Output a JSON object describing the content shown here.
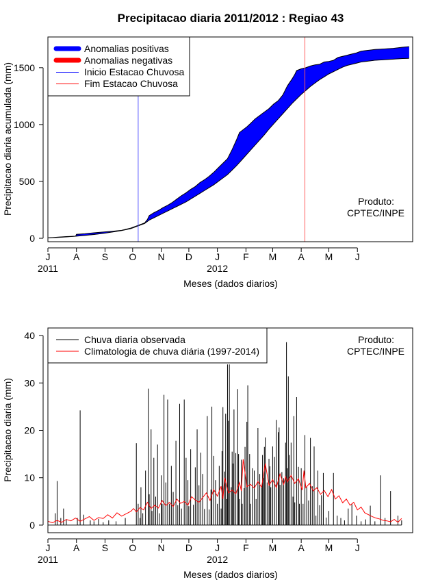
{
  "chart_data": [
    {
      "type": "area",
      "title": "Precipitacao diaria 2011/2012 : Regiao 43",
      "xlabel": "Meses (dados diarios)",
      "ylabel": "Precipitacao diaria acumulada (mm)",
      "ylim": [
        -30,
        1770
      ],
      "yticks": [
        0,
        500,
        1000,
        1500
      ],
      "xdays": [
        0,
        396
      ],
      "month_ticks": [
        {
          "label": "J",
          "day": 0
        },
        {
          "label": "A",
          "day": 31
        },
        {
          "label": "S",
          "day": 62
        },
        {
          "label": "O",
          "day": 92
        },
        {
          "label": "N",
          "day": 123
        },
        {
          "label": "D",
          "day": 153
        },
        {
          "label": "J",
          "day": 184
        },
        {
          "label": "F",
          "day": 215
        },
        {
          "label": "M",
          "day": 244
        },
        {
          "label": "A",
          "day": 275
        },
        {
          "label": "M",
          "day": 305
        },
        {
          "label": "J",
          "day": 336
        }
      ],
      "year_labels": [
        {
          "label": "2011",
          "day": 0
        },
        {
          "label": "2012",
          "day": 184
        }
      ],
      "legend": {
        "placement": "top-left",
        "entries": [
          {
            "label": "Anomalias positivas",
            "color": "#0000ff",
            "style": "thick"
          },
          {
            "label": "Anomalias negativas",
            "color": "#ff0000",
            "style": "thick"
          },
          {
            "label": "Inicio Estacao Chuvosa",
            "color": "#0000ff",
            "style": "thin"
          },
          {
            "label": "Fim Estacao Chuvosa",
            "color": "#ff0000",
            "style": "thin"
          }
        ]
      },
      "vlines": [
        {
          "name": "inicio",
          "day": 98,
          "color": "#5a5aff"
        },
        {
          "name": "fim",
          "day": 279,
          "color": "#ff5a5a"
        }
      ],
      "series": [
        {
          "name": "Observado acumulado",
          "days": [
            0,
            10,
            20,
            30,
            31,
            40,
            50,
            60,
            70,
            80,
            90,
            95,
            100,
            105,
            108,
            110,
            115,
            120,
            125,
            130,
            135,
            140,
            145,
            150,
            155,
            160,
            165,
            170,
            175,
            180,
            185,
            190,
            195,
            200,
            205,
            208,
            212,
            216,
            220,
            225,
            230,
            235,
            240,
            245,
            250,
            255,
            260,
            265,
            268,
            270,
            275,
            280,
            285,
            290,
            295,
            300,
            305,
            310,
            315,
            320,
            325,
            330,
            335,
            340,
            345,
            350,
            355,
            365,
            375,
            385,
            392
          ],
          "values": [
            3,
            10,
            15,
            18,
            35,
            40,
            48,
            55,
            62,
            70,
            90,
            105,
            120,
            135,
            165,
            200,
            225,
            245,
            270,
            290,
            315,
            345,
            375,
            400,
            430,
            455,
            490,
            515,
            545,
            580,
            620,
            660,
            700,
            780,
            870,
            930,
            955,
            980,
            1010,
            1050,
            1080,
            1110,
            1140,
            1180,
            1210,
            1260,
            1340,
            1400,
            1440,
            1475,
            1490,
            1500,
            1515,
            1525,
            1530,
            1550,
            1555,
            1565,
            1590,
            1600,
            1610,
            1620,
            1630,
            1645,
            1650,
            1655,
            1660,
            1665,
            1670,
            1680,
            1685
          ]
        },
        {
          "name": "Climatologia acumulada",
          "days": [
            0,
            10,
            20,
            30,
            40,
            50,
            60,
            70,
            80,
            90,
            95,
            100,
            105,
            110,
            115,
            120,
            125,
            130,
            135,
            140,
            145,
            150,
            155,
            160,
            165,
            170,
            175,
            180,
            185,
            190,
            195,
            200,
            205,
            210,
            215,
            220,
            225,
            230,
            235,
            240,
            245,
            250,
            255,
            260,
            265,
            270,
            275,
            280,
            285,
            290,
            295,
            300,
            305,
            310,
            315,
            320,
            325,
            330,
            335,
            340,
            345,
            350,
            355,
            365,
            375,
            385,
            392
          ],
          "values": [
            3,
            7,
            12,
            18,
            25,
            33,
            43,
            55,
            68,
            85,
            100,
            115,
            130,
            160,
            180,
            200,
            220,
            240,
            260,
            280,
            300,
            320,
            345,
            370,
            395,
            420,
            445,
            470,
            500,
            530,
            560,
            600,
            640,
            685,
            730,
            775,
            820,
            865,
            910,
            960,
            1005,
            1050,
            1095,
            1140,
            1185,
            1225,
            1265,
            1300,
            1335,
            1365,
            1395,
            1420,
            1445,
            1465,
            1485,
            1505,
            1520,
            1530,
            1540,
            1550,
            1555,
            1560,
            1565,
            1570,
            1575,
            1580,
            1582
          ]
        }
      ],
      "annotation": [
        "Produto:",
        "CPTEC/INPE"
      ]
    },
    {
      "type": "bar",
      "title": "",
      "xlabel": "Meses (dados diarios)",
      "ylabel": "Precipitacao diaria (mm)",
      "ylim": [
        -1.6,
        41.6
      ],
      "yticks": [
        0,
        10,
        20,
        30,
        40
      ],
      "xdays": [
        0,
        396
      ],
      "month_ticks": [
        {
          "label": "J",
          "day": 0
        },
        {
          "label": "A",
          "day": 31
        },
        {
          "label": "S",
          "day": 62
        },
        {
          "label": "O",
          "day": 92
        },
        {
          "label": "N",
          "day": 123
        },
        {
          "label": "D",
          "day": 153
        },
        {
          "label": "J",
          "day": 184
        },
        {
          "label": "F",
          "day": 215
        },
        {
          "label": "M",
          "day": 244
        },
        {
          "label": "A",
          "day": 275
        },
        {
          "label": "M",
          "day": 305
        },
        {
          "label": "J",
          "day": 336
        }
      ],
      "year_labels": [
        {
          "label": "2011",
          "day": 0
        },
        {
          "label": "2012",
          "day": 184
        }
      ],
      "legend": {
        "placement": "top-left",
        "entries": [
          {
            "label": "Chuva diaria observada",
            "color": "#000000",
            "style": "thin"
          },
          {
            "label": "Climatologia de chuva diária (1997-2014)",
            "color": "#ff0000",
            "style": "thin"
          }
        ]
      },
      "series": [
        {
          "name": "Chuva diaria observada",
          "type": "bar",
          "days": [
            8,
            10,
            14,
            17,
            20,
            32,
            35,
            39,
            46,
            50,
            55,
            60,
            66,
            74,
            84,
            96,
            98,
            100,
            101,
            103,
            106,
            109,
            110,
            112,
            113,
            115,
            117,
            119,
            121,
            123,
            124,
            126,
            128,
            130,
            132,
            134,
            136,
            139,
            141,
            143,
            145,
            148,
            150,
            152,
            153,
            155,
            158,
            160,
            162,
            164,
            166,
            168,
            170,
            173,
            175,
            177,
            178,
            180,
            182,
            184,
            186,
            188,
            189,
            190,
            192,
            193,
            194,
            195,
            196,
            197,
            199,
            200,
            201,
            202,
            204,
            206,
            207,
            208,
            210,
            211,
            213,
            214,
            216,
            217,
            219,
            220,
            222,
            224,
            226,
            228,
            230,
            232,
            233,
            234,
            235,
            236,
            238,
            240,
            241,
            242,
            244,
            246,
            248,
            250,
            251,
            252,
            254,
            256,
            258,
            259,
            260,
            261,
            262,
            264,
            266,
            267,
            268,
            270,
            272,
            273,
            275,
            277,
            279,
            281,
            283,
            285,
            287,
            289,
            291,
            293,
            295,
            297,
            299,
            302,
            305,
            310,
            314,
            318,
            322,
            326,
            330,
            335,
            340,
            345,
            350,
            355,
            361,
            366,
            372,
            380,
            384
          ],
          "values": [
            2.5,
            9.3,
            1.5,
            3.5,
            1.2,
            1.5,
            24.2,
            2.2,
            1.0,
            0.8,
            1.3,
            0.6,
            1.0,
            0.8,
            1.5,
            17.3,
            4.5,
            1.5,
            8.0,
            2.5,
            11.5,
            28.8,
            6.5,
            20.2,
            3.0,
            14.2,
            6.0,
            17.0,
            2.5,
            10.5,
            4.5,
            27.5,
            9.0,
            26.5,
            4.5,
            12.5,
            7.0,
            17.8,
            4.2,
            25.6,
            3.5,
            26.5,
            14.2,
            9.5,
            4.0,
            16.0,
            4.3,
            12.2,
            20.2,
            8.4,
            15.3,
            10.8,
            3.4,
            23.0,
            3.3,
            7.5,
            25.0,
            14.6,
            9.5,
            4.5,
            12.5,
            3.5,
            15.6,
            24.9,
            11.3,
            23.5,
            5.5,
            33.9,
            22.0,
            33.9,
            8.0,
            15.5,
            13.0,
            24.4,
            15.2,
            28.7,
            15.0,
            5.5,
            13.8,
            4.5,
            7.8,
            16.5,
            21.8,
            29.5,
            15.0,
            4.5,
            12.0,
            11.5,
            5.5,
            20.5,
            10.8,
            8.0,
            14.8,
            10.0,
            16.5,
            18.5,
            9.0,
            14.0,
            12.4,
            8.0,
            16.6,
            14.4,
            22.2,
            19.6,
            20.6,
            8.5,
            11.2,
            9.9,
            17.4,
            38.6,
            12.0,
            31.4,
            14.8,
            17.4,
            6.0,
            23.0,
            4.8,
            27.0,
            12.3,
            4.5,
            12.0,
            4.5,
            19.0,
            8.0,
            5.2,
            18.4,
            8.2,
            16.6,
            2.0,
            11.5,
            4.2,
            6.3,
            11.0,
            1.6,
            3.0,
            11.0,
            2.0,
            1.5,
            1.0,
            3.5,
            4.4,
            2.0,
            0.8,
            1.2,
            4.1,
            0.8,
            10.5,
            1.5,
            7.2,
            2.0,
            1.0
          ],
          "color": "#000000"
        },
        {
          "name": "Climatologia de chuva diária (1997-2014)",
          "type": "line",
          "days": [
            0,
            5,
            10,
            15,
            20,
            25,
            30,
            35,
            40,
            45,
            50,
            55,
            60,
            65,
            70,
            75,
            80,
            85,
            90,
            93,
            96,
            100,
            104,
            108,
            112,
            116,
            120,
            124,
            128,
            132,
            136,
            140,
            144,
            148,
            152,
            156,
            160,
            164,
            168,
            172,
            176,
            180,
            184,
            188,
            190,
            192,
            196,
            200,
            204,
            208,
            210,
            212,
            216,
            220,
            224,
            228,
            232,
            236,
            240,
            244,
            248,
            252,
            256,
            258,
            260,
            264,
            268,
            272,
            276,
            278,
            280,
            284,
            288,
            292,
            296,
            300,
            304,
            308,
            312,
            316,
            320,
            324,
            328,
            332,
            336,
            340,
            344,
            348,
            352,
            356,
            360,
            364,
            368,
            372,
            376,
            380,
            384
          ],
          "values": [
            0.8,
            0.5,
            1.0,
            0.6,
            1.2,
            0.9,
            1.5,
            0.8,
            1.3,
            1.8,
            1.0,
            1.6,
            1.4,
            2.2,
            1.5,
            2.6,
            1.9,
            2.4,
            2.9,
            3.5,
            2.8,
            3.7,
            3.2,
            4.8,
            3.5,
            4.2,
            3.6,
            5.2,
            4.1,
            4.8,
            3.9,
            5.5,
            4.6,
            5.0,
            4.2,
            6.0,
            5.3,
            4.8,
            5.8,
            6.8,
            5.2,
            7.5,
            6.1,
            8.2,
            5.5,
            10.0,
            6.8,
            7.4,
            6.6,
            9.0,
            7.2,
            13.9,
            8.1,
            8.6,
            7.8,
            9.2,
            8.0,
            13.0,
            8.4,
            9.6,
            7.9,
            10.8,
            8.6,
            10.2,
            9.1,
            10.5,
            8.8,
            9.8,
            7.4,
            11.5,
            7.9,
            8.8,
            7.2,
            7.9,
            6.5,
            7.3,
            6.0,
            7.5,
            5.5,
            6.2,
            4.7,
            5.5,
            4.2,
            4.8,
            3.2,
            3.8,
            2.6,
            2.2,
            1.8,
            1.5,
            1.3,
            1.0,
            0.9,
            0.7,
            1.2,
            0.6,
            1.4
          ],
          "color": "#ff0000"
        }
      ],
      "annotation": [
        "Produto:",
        "CPTEC/INPE"
      ]
    }
  ]
}
